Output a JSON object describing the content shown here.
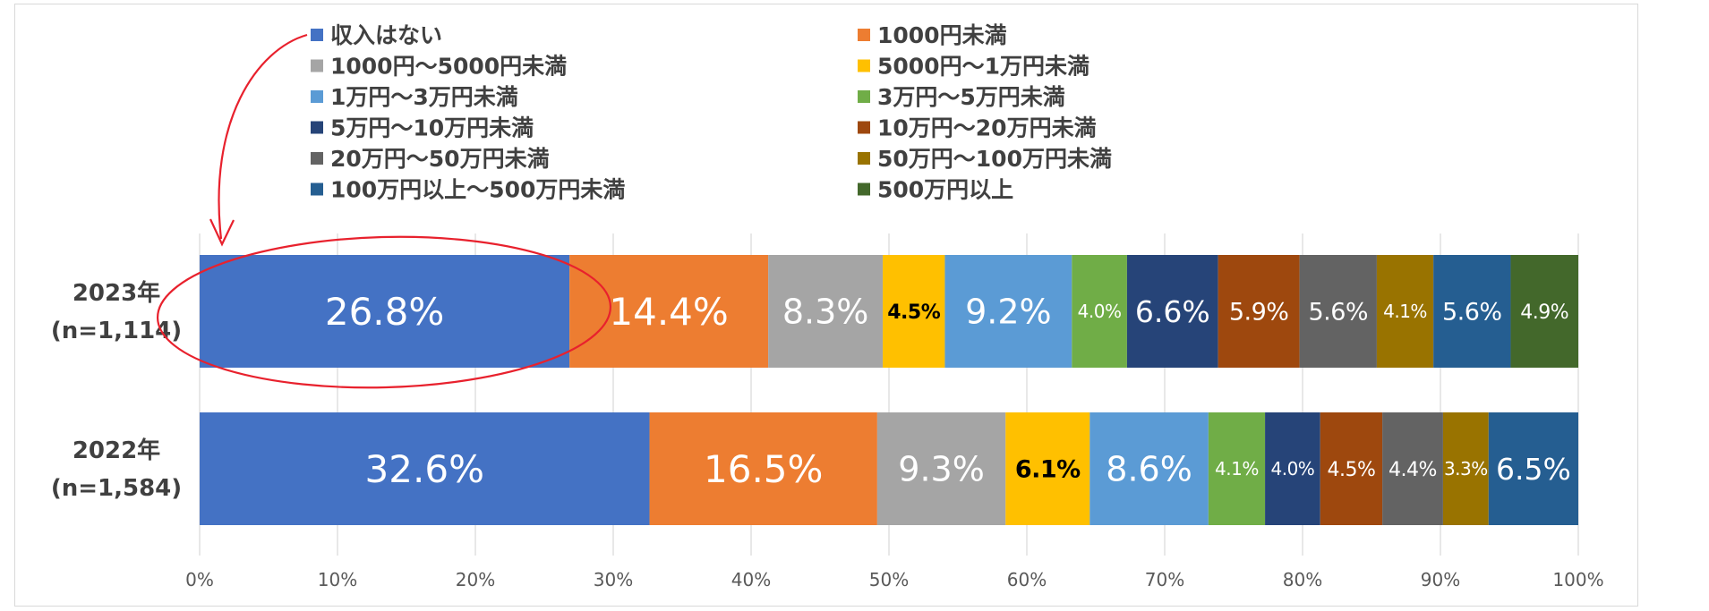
{
  "chart_data": {
    "type": "bar",
    "orientation": "horizontal",
    "stacked": true,
    "percent": true,
    "xlim": [
      0,
      100
    ],
    "x_ticks": [
      "0%",
      "10%",
      "20%",
      "30%",
      "40%",
      "50%",
      "60%",
      "70%",
      "80%",
      "90%",
      "100%"
    ],
    "grid": true,
    "legend_position": "top",
    "categories": [
      {
        "line1": "2023年",
        "line2": "(n=1,114)"
      },
      {
        "line1": "2022年",
        "line2": "(n=1,584)"
      }
    ],
    "series": [
      {
        "name": "収入はない",
        "color": "#4472C4",
        "label_color": "#ffffff",
        "values": [
          26.8,
          32.6
        ],
        "labels": [
          "26.8%",
          "32.6%"
        ]
      },
      {
        "name": "1000円未満",
        "color": "#ED7D31",
        "label_color": "#ffffff",
        "values": [
          14.4,
          16.5
        ],
        "labels": [
          "14.4%",
          "16.5%"
        ]
      },
      {
        "name": "1000円〜5000円未満",
        "color": "#A5A5A5",
        "label_color": "#ffffff",
        "values": [
          8.3,
          9.3
        ],
        "labels": [
          "8.3%",
          "9.3%"
        ]
      },
      {
        "name": "5000円〜1万円未満",
        "color": "#FFC000",
        "label_color": "#000000",
        "values": [
          4.5,
          6.1
        ],
        "labels": [
          "4.5%",
          "6.1%"
        ]
      },
      {
        "name": "1万円〜3万円未満",
        "color": "#5B9BD5",
        "label_color": "#ffffff",
        "values": [
          9.2,
          8.6
        ],
        "labels": [
          "9.2%",
          "8.6%"
        ]
      },
      {
        "name": "3万円〜5万円未満",
        "color": "#70AD47",
        "label_color": "#ffffff",
        "values": [
          4.0,
          4.1
        ],
        "labels": [
          "4.0%",
          "4.1%"
        ]
      },
      {
        "name": "5万円〜10万円未満",
        "color": "#264478",
        "label_color": "#ffffff",
        "values": [
          6.6,
          4.0
        ],
        "labels": [
          "6.6%",
          "4.0%"
        ]
      },
      {
        "name": "10万円〜20万円未満",
        "color": "#9E480E",
        "label_color": "#ffffff",
        "values": [
          5.9,
          4.5
        ],
        "labels": [
          "5.9%",
          "4.5%"
        ]
      },
      {
        "name": "20万円〜50万円未満",
        "color": "#636363",
        "label_color": "#ffffff",
        "values": [
          5.6,
          4.4
        ],
        "labels": [
          "5.6%",
          "4.4%"
        ]
      },
      {
        "name": "50万円〜100万円未満",
        "color": "#997300",
        "label_color": "#ffffff",
        "values": [
          4.1,
          3.3
        ],
        "labels": [
          "4.1%",
          "3.3%"
        ]
      },
      {
        "name": "100万円以上〜500万円未満",
        "color": "#255E91",
        "label_color": "#ffffff",
        "values": [
          5.6,
          6.5
        ],
        "labels": [
          "5.6%",
          "6.5%"
        ]
      },
      {
        "name": "500万円以上",
        "color": "#43682B",
        "label_color": "#ffffff",
        "values": [
          4.9,
          0
        ],
        "labels": [
          "4.9%",
          ""
        ]
      }
    ],
    "annotation": {
      "type": "circle-with-arrow",
      "target": "収入はない 2023年",
      "color": "#E8212D"
    }
  }
}
